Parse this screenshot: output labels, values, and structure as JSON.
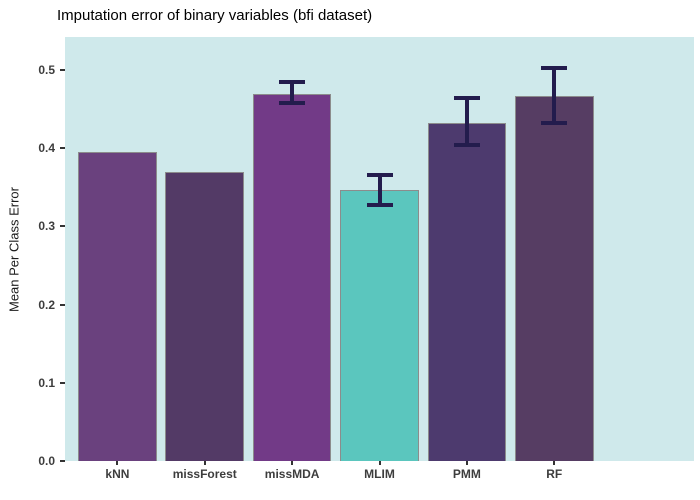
{
  "chart_data": {
    "type": "bar",
    "title": "Imputation error of binary variables (bfi dataset)",
    "xlabel": "",
    "ylabel": "Mean Per Class Error",
    "categories": [
      "kNN",
      "missForest",
      "missMDA",
      "MLIM",
      "PMM",
      "RF"
    ],
    "values": [
      0.395,
      0.37,
      0.469,
      0.347,
      0.432,
      0.466
    ],
    "error_bars": [
      null,
      null,
      {
        "low": 0.457,
        "high": 0.485
      },
      {
        "low": 0.327,
        "high": 0.366
      },
      {
        "low": 0.404,
        "high": 0.464
      },
      {
        "low": 0.432,
        "high": 0.502
      }
    ],
    "bar_colors": [
      "#6A417E",
      "#533A66",
      "#723A87",
      "#5BC6BE",
      "#4D3A6E",
      "#563D63"
    ],
    "bar_border_color": "#8C8C8C",
    "error_bar_color": "#231C4D",
    "panel_background": "#CFE9EB",
    "ytick_labels": [
      "0.0",
      "0.1",
      "0.2",
      "0.3",
      "0.4",
      "0.5"
    ],
    "ytick_values": [
      0.0,
      0.1,
      0.2,
      0.3,
      0.4,
      0.5
    ],
    "ylim": [
      0,
      0.542
    ],
    "grid": false,
    "legend": "none"
  }
}
